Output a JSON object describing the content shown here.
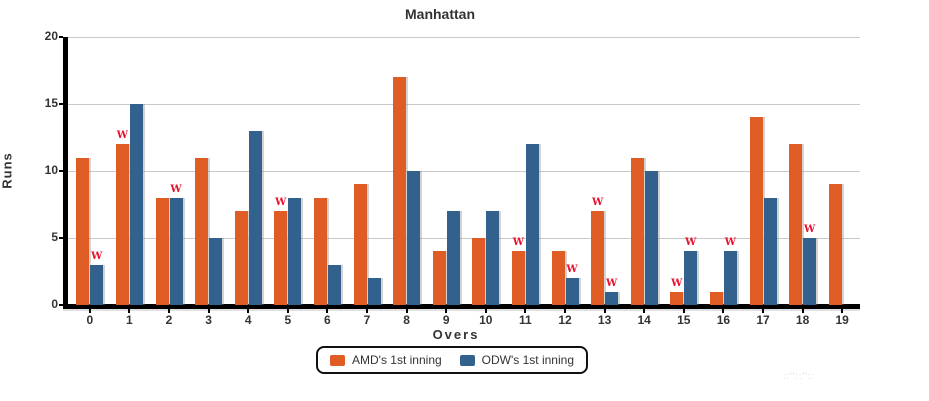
{
  "chart_data": {
    "type": "bar",
    "title": "Manhattan",
    "xlabel": "Overs",
    "ylabel": "Runs",
    "categories": [
      "0",
      "1",
      "2",
      "3",
      "4",
      "5",
      "6",
      "7",
      "8",
      "9",
      "10",
      "11",
      "12",
      "13",
      "14",
      "15",
      "16",
      "17",
      "18",
      "19"
    ],
    "series": [
      {
        "name": "AMD's 1st inning",
        "color": "#e05c25",
        "values": [
          11,
          12,
          8,
          11,
          7,
          7,
          8,
          9,
          17,
          4,
          5,
          4,
          4,
          7,
          11,
          1,
          1,
          14,
          12,
          9
        ],
        "wicket_overs": [
          1,
          5,
          11,
          13,
          15
        ]
      },
      {
        "name": "ODW's 1st inning",
        "color": "#33618e",
        "values": [
          3,
          15,
          8,
          5,
          13,
          8,
          3,
          2,
          10,
          7,
          7,
          12,
          2,
          1,
          10,
          4,
          4,
          8,
          5,
          null
        ],
        "wicket_overs": [
          0,
          2,
          12,
          13,
          15,
          16,
          18
        ]
      }
    ],
    "ylim": [
      0,
      20
    ],
    "yticks": [
      0,
      5,
      10,
      15,
      20
    ],
    "grid": true,
    "legend_position": "bottom",
    "wicket_marker": "W",
    "wicket_color": "#e8112d"
  },
  "watermark": "::''::''::"
}
